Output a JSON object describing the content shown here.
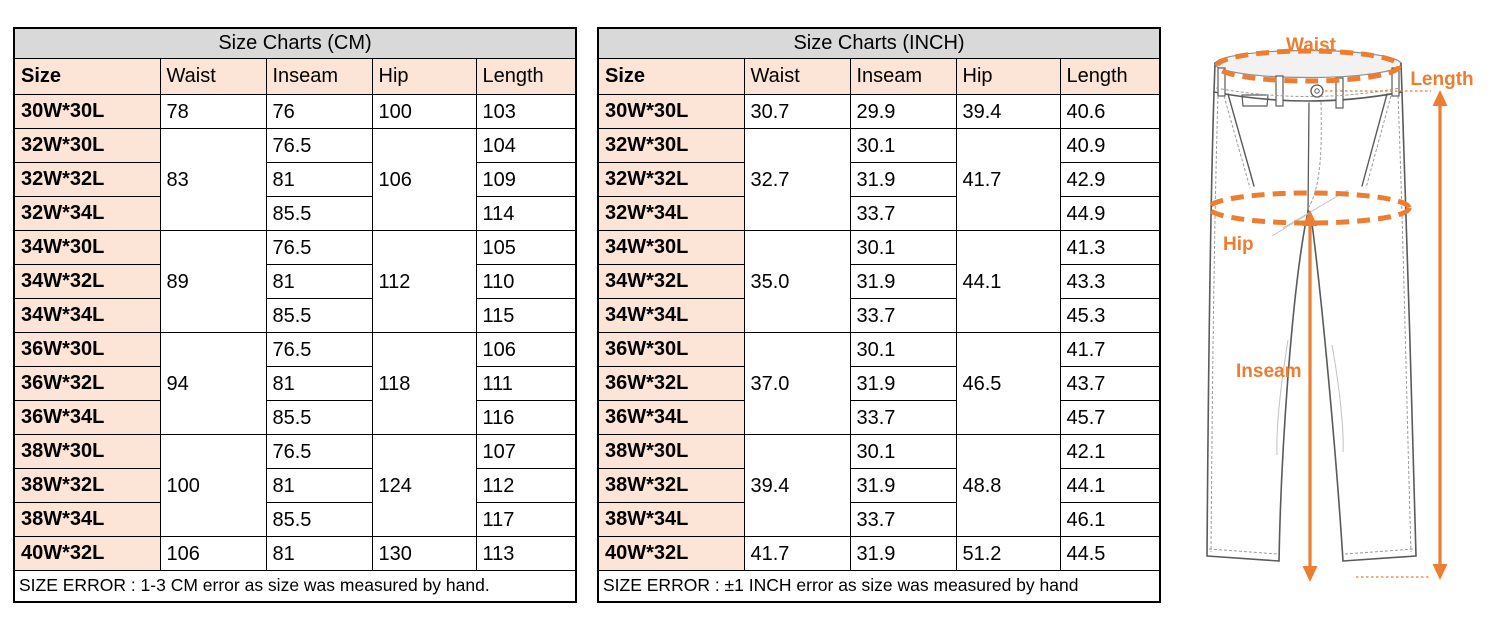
{
  "colors": {
    "table_title_bg": "#d9d9d9",
    "table_header_bg": "#fce4d6",
    "table_border": "#000000",
    "accent_orange": "#ED7D31",
    "pants_outline": "#5a5a5a"
  },
  "tables": [
    {
      "name": "cm",
      "title": "Size Charts (CM)",
      "columns": [
        "Size",
        "Waist",
        "Inseam",
        "Hip",
        "Length"
      ],
      "rows": [
        {
          "size": "30W*30L",
          "waist": {
            "v": "78"
          },
          "inseam": {
            "v": "76"
          },
          "hip": {
            "v": "100"
          },
          "length": {
            "v": "103"
          }
        },
        {
          "size": "32W*30L",
          "waist": {
            "v": "83",
            "rs": 3
          },
          "inseam": {
            "v": "76.5"
          },
          "hip": {
            "v": "106",
            "rs": 3
          },
          "length": {
            "v": "104"
          }
        },
        {
          "size": "32W*32L",
          "inseam": {
            "v": "81"
          },
          "length": {
            "v": "109"
          }
        },
        {
          "size": "32W*34L",
          "inseam": {
            "v": "85.5"
          },
          "length": {
            "v": "114"
          }
        },
        {
          "size": "34W*30L",
          "waist": {
            "v": "89",
            "rs": 3
          },
          "inseam": {
            "v": "76.5"
          },
          "hip": {
            "v": "112",
            "rs": 3
          },
          "length": {
            "v": "105"
          }
        },
        {
          "size": "34W*32L",
          "inseam": {
            "v": "81"
          },
          "length": {
            "v": "110"
          }
        },
        {
          "size": "34W*34L",
          "inseam": {
            "v": "85.5"
          },
          "length": {
            "v": "115"
          }
        },
        {
          "size": "36W*30L",
          "waist": {
            "v": "94",
            "rs": 3
          },
          "inseam": {
            "v": "76.5"
          },
          "hip": {
            "v": "118",
            "rs": 3
          },
          "length": {
            "v": "106"
          }
        },
        {
          "size": "36W*32L",
          "inseam": {
            "v": "81"
          },
          "length": {
            "v": "111"
          }
        },
        {
          "size": "36W*34L",
          "inseam": {
            "v": "85.5"
          },
          "length": {
            "v": "116"
          }
        },
        {
          "size": "38W*30L",
          "waist": {
            "v": "100",
            "rs": 3
          },
          "inseam": {
            "v": "76.5"
          },
          "hip": {
            "v": "124",
            "rs": 3
          },
          "length": {
            "v": "107"
          }
        },
        {
          "size": "38W*32L",
          "inseam": {
            "v": "81"
          },
          "length": {
            "v": "112"
          }
        },
        {
          "size": "38W*34L",
          "inseam": {
            "v": "85.5"
          },
          "length": {
            "v": "117"
          }
        },
        {
          "size": "40W*32L",
          "waist": {
            "v": "106"
          },
          "inseam": {
            "v": "81"
          },
          "hip": {
            "v": "130"
          },
          "length": {
            "v": "113"
          }
        }
      ],
      "footer": "SIZE ERROR : 1-3 CM error as size was measured by hand."
    },
    {
      "name": "inch",
      "title": "Size Charts (INCH)",
      "columns": [
        "Size",
        "Waist",
        "Inseam",
        "Hip",
        "Length"
      ],
      "rows": [
        {
          "size": "30W*30L",
          "waist": {
            "v": "30.7"
          },
          "inseam": {
            "v": "29.9"
          },
          "hip": {
            "v": "39.4"
          },
          "length": {
            "v": "40.6"
          }
        },
        {
          "size": "32W*30L",
          "waist": {
            "v": "32.7",
            "rs": 3
          },
          "inseam": {
            "v": "30.1"
          },
          "hip": {
            "v": "41.7",
            "rs": 3
          },
          "length": {
            "v": "40.9"
          }
        },
        {
          "size": "32W*32L",
          "inseam": {
            "v": "31.9"
          },
          "length": {
            "v": "42.9"
          }
        },
        {
          "size": "32W*34L",
          "inseam": {
            "v": "33.7"
          },
          "length": {
            "v": "44.9"
          }
        },
        {
          "size": "34W*30L",
          "waist": {
            "v": "35.0",
            "rs": 3
          },
          "inseam": {
            "v": "30.1"
          },
          "hip": {
            "v": "44.1",
            "rs": 3
          },
          "length": {
            "v": "41.3"
          }
        },
        {
          "size": "34W*32L",
          "inseam": {
            "v": "31.9"
          },
          "length": {
            "v": "43.3"
          }
        },
        {
          "size": "34W*34L",
          "inseam": {
            "v": "33.7"
          },
          "length": {
            "v": "45.3"
          }
        },
        {
          "size": "36W*30L",
          "waist": {
            "v": "37.0",
            "rs": 3
          },
          "inseam": {
            "v": "30.1"
          },
          "hip": {
            "v": "46.5",
            "rs": 3
          },
          "length": {
            "v": "41.7"
          }
        },
        {
          "size": "36W*32L",
          "inseam": {
            "v": "31.9"
          },
          "length": {
            "v": "43.7"
          }
        },
        {
          "size": "36W*34L",
          "inseam": {
            "v": "33.7"
          },
          "length": {
            "v": "45.7"
          }
        },
        {
          "size": "38W*30L",
          "waist": {
            "v": "39.4",
            "rs": 3
          },
          "inseam": {
            "v": "30.1"
          },
          "hip": {
            "v": "48.8",
            "rs": 3
          },
          "length": {
            "v": "42.1"
          }
        },
        {
          "size": "38W*32L",
          "inseam": {
            "v": "31.9"
          },
          "length": {
            "v": "44.1"
          }
        },
        {
          "size": "38W*34L",
          "inseam": {
            "v": "33.7"
          },
          "length": {
            "v": "46.1"
          }
        },
        {
          "size": "40W*32L",
          "waist": {
            "v": "41.7"
          },
          "inseam": {
            "v": "31.9"
          },
          "hip": {
            "v": "51.2"
          },
          "length": {
            "v": "44.5"
          }
        }
      ],
      "footer": "SIZE ERROR : ±1 INCH error as size was measured by hand"
    }
  ],
  "diagram": {
    "labels": {
      "waist": "Waist",
      "length": "Length",
      "hip": "Hip",
      "inseam": "Inseam"
    }
  }
}
